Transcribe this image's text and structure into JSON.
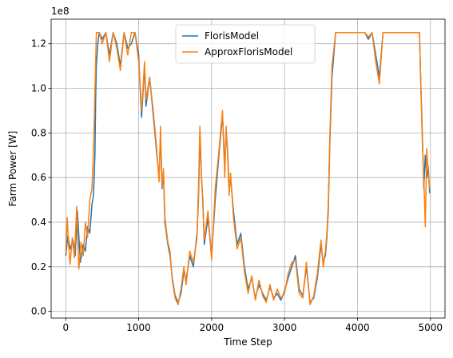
{
  "chart_data": {
    "type": "line",
    "xlabel": "Time Step",
    "ylabel": "Farm Power [W]",
    "y_offset_label": "1e8",
    "xlim": [
      -200,
      5200
    ],
    "ylim": [
      -0.03,
      1.31
    ],
    "grid": true,
    "legend_position": "upper center",
    "x_ticks": [
      0,
      1000,
      2000,
      3000,
      4000,
      5000
    ],
    "x_tick_labels": [
      "0",
      "1000",
      "2000",
      "3000",
      "4000",
      "5000"
    ],
    "y_ticks": [
      0.0,
      0.2,
      0.4,
      0.6,
      0.8,
      1.0,
      1.2
    ],
    "y_tick_labels": [
      "0.0",
      "0.2",
      "0.4",
      "0.6",
      "0.8",
      "1.0",
      "1.2"
    ],
    "series": [
      {
        "name": "FlorisModel",
        "color": "#1f77b4",
        "x": [
          0,
          30,
          60,
          100,
          130,
          160,
          200,
          240,
          270,
          300,
          330,
          360,
          380,
          400,
          410,
          420,
          440,
          460,
          500,
          550,
          600,
          650,
          700,
          750,
          800,
          850,
          900,
          950,
          1000,
          1020,
          1040,
          1060,
          1080,
          1100,
          1150,
          1200,
          1250,
          1280,
          1300,
          1320,
          1340,
          1360,
          1400,
          1430,
          1460,
          1500,
          1540,
          1580,
          1620,
          1650,
          1700,
          1750,
          1800,
          1820,
          1840,
          1860,
          1880,
          1900,
          1950,
          2000,
          2050,
          2100,
          2150,
          2180,
          2200,
          2220,
          2240,
          2260,
          2300,
          2350,
          2400,
          2450,
          2500,
          2550,
          2600,
          2650,
          2700,
          2750,
          2800,
          2850,
          2900,
          2950,
          3000,
          3050,
          3100,
          3150,
          3200,
          3250,
          3300,
          3350,
          3400,
          3450,
          3500,
          3530,
          3560,
          3580,
          3600,
          3620,
          3650,
          3700,
          3800,
          3900,
          4000,
          4100,
          4150,
          4200,
          4250,
          4300,
          4350,
          4400,
          4500,
          4600,
          4700,
          4800,
          4850,
          4870,
          4890,
          4910,
          4930,
          4950,
          4970,
          4990
        ],
        "values": [
          0.25,
          0.34,
          0.28,
          0.32,
          0.25,
          0.45,
          0.22,
          0.3,
          0.27,
          0.38,
          0.35,
          0.48,
          0.52,
          0.7,
          0.95,
          1.1,
          1.2,
          1.25,
          1.22,
          1.25,
          1.15,
          1.25,
          1.2,
          1.1,
          1.25,
          1.18,
          1.2,
          1.25,
          1.15,
          1.0,
          0.87,
          0.98,
          1.1,
          0.92,
          1.05,
          0.88,
          0.7,
          0.6,
          0.8,
          0.55,
          0.62,
          0.4,
          0.3,
          0.25,
          0.15,
          0.07,
          0.04,
          0.08,
          0.18,
          0.14,
          0.25,
          0.2,
          0.35,
          0.5,
          0.8,
          0.6,
          0.5,
          0.3,
          0.42,
          0.25,
          0.5,
          0.7,
          0.88,
          0.65,
          0.8,
          0.72,
          0.55,
          0.6,
          0.45,
          0.3,
          0.35,
          0.2,
          0.1,
          0.15,
          0.06,
          0.12,
          0.08,
          0.05,
          0.11,
          0.06,
          0.08,
          0.05,
          0.09,
          0.15,
          0.2,
          0.25,
          0.1,
          0.07,
          0.2,
          0.04,
          0.06,
          0.15,
          0.3,
          0.22,
          0.25,
          0.33,
          0.45,
          0.75,
          1.05,
          1.25,
          1.25,
          1.25,
          1.25,
          1.25,
          1.22,
          1.25,
          1.15,
          1.05,
          1.25,
          1.25,
          1.25,
          1.25,
          1.25,
          1.25,
          1.25,
          1.0,
          0.78,
          0.55,
          0.7,
          0.6,
          0.65,
          0.53
        ]
      },
      {
        "name": "ApproxFlorisModel",
        "color": "#ff7f0e",
        "x": [
          0,
          20,
          40,
          60,
          90,
          120,
          150,
          180,
          210,
          240,
          270,
          300,
          330,
          360,
          380,
          400,
          410,
          420,
          440,
          460,
          500,
          550,
          600,
          650,
          700,
          750,
          800,
          850,
          900,
          950,
          1000,
          1020,
          1040,
          1060,
          1080,
          1100,
          1150,
          1200,
          1250,
          1280,
          1300,
          1320,
          1340,
          1360,
          1400,
          1430,
          1460,
          1500,
          1540,
          1580,
          1620,
          1650,
          1700,
          1750,
          1800,
          1820,
          1840,
          1860,
          1880,
          1900,
          1950,
          2000,
          2050,
          2100,
          2150,
          2180,
          2200,
          2220,
          2240,
          2260,
          2300,
          2350,
          2400,
          2450,
          2500,
          2550,
          2600,
          2650,
          2700,
          2750,
          2800,
          2850,
          2900,
          2950,
          3000,
          3050,
          3100,
          3150,
          3200,
          3250,
          3300,
          3350,
          3400,
          3450,
          3500,
          3530,
          3560,
          3580,
          3600,
          3620,
          3650,
          3700,
          3800,
          3900,
          4000,
          4100,
          4150,
          4200,
          4250,
          4300,
          4350,
          4400,
          4500,
          4600,
          4700,
          4800,
          4850,
          4870,
          4890,
          4910,
          4930,
          4950,
          4970,
          4990
        ],
        "values": [
          0.26,
          0.42,
          0.3,
          0.21,
          0.33,
          0.24,
          0.47,
          0.19,
          0.31,
          0.25,
          0.4,
          0.33,
          0.5,
          0.55,
          0.72,
          0.98,
          1.12,
          1.25,
          1.25,
          1.25,
          1.2,
          1.25,
          1.12,
          1.25,
          1.18,
          1.08,
          1.25,
          1.15,
          1.25,
          1.25,
          1.12,
          1.02,
          0.9,
          1.0,
          1.12,
          0.95,
          1.05,
          0.9,
          0.72,
          0.58,
          0.83,
          0.56,
          0.64,
          0.42,
          0.31,
          0.27,
          0.14,
          0.06,
          0.03,
          0.1,
          0.2,
          0.12,
          0.27,
          0.22,
          0.33,
          0.55,
          0.83,
          0.62,
          0.48,
          0.32,
          0.45,
          0.23,
          0.55,
          0.72,
          0.9,
          0.6,
          0.83,
          0.7,
          0.52,
          0.62,
          0.42,
          0.28,
          0.33,
          0.18,
          0.08,
          0.16,
          0.05,
          0.14,
          0.07,
          0.04,
          0.12,
          0.05,
          0.1,
          0.06,
          0.08,
          0.17,
          0.22,
          0.23,
          0.08,
          0.06,
          0.22,
          0.03,
          0.07,
          0.17,
          0.32,
          0.2,
          0.27,
          0.35,
          0.48,
          0.78,
          1.1,
          1.25,
          1.25,
          1.25,
          1.25,
          1.25,
          1.23,
          1.25,
          1.12,
          1.02,
          1.25,
          1.25,
          1.25,
          1.25,
          1.25,
          1.25,
          1.25,
          0.98,
          0.75,
          0.6,
          0.38,
          0.73,
          0.62,
          0.55
        ]
      }
    ]
  }
}
